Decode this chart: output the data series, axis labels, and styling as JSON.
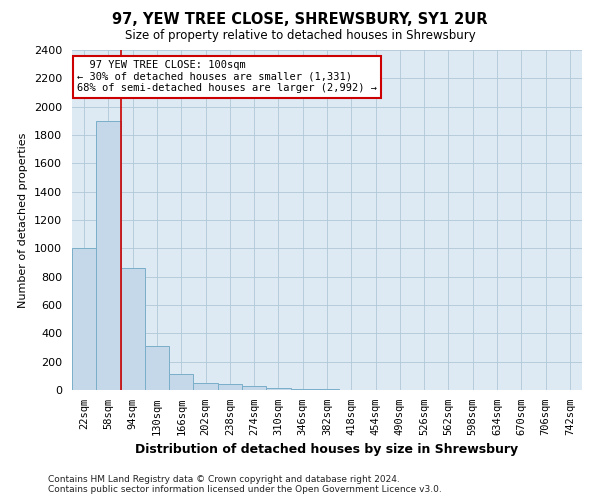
{
  "title": "97, YEW TREE CLOSE, SHREWSBURY, SY1 2UR",
  "subtitle": "Size of property relative to detached houses in Shrewsbury",
  "xlabel": "Distribution of detached houses by size in Shrewsbury",
  "ylabel": "Number of detached properties",
  "footnote1": "Contains HM Land Registry data © Crown copyright and database right 2024.",
  "footnote2": "Contains public sector information licensed under the Open Government Licence v3.0.",
  "bar_labels": [
    "22sqm",
    "58sqm",
    "94sqm",
    "130sqm",
    "166sqm",
    "202sqm",
    "238sqm",
    "274sqm",
    "310sqm",
    "346sqm",
    "382sqm",
    "418sqm",
    "454sqm",
    "490sqm",
    "526sqm",
    "562sqm",
    "598sqm",
    "634sqm",
    "670sqm",
    "706sqm",
    "742sqm"
  ],
  "bar_values": [
    1000,
    1900,
    860,
    310,
    110,
    50,
    40,
    25,
    15,
    10,
    5,
    3,
    2,
    1,
    1,
    0,
    0,
    0,
    0,
    0,
    0
  ],
  "bar_color": "#c5d8ea",
  "bar_edge_color": "#7aaec8",
  "red_line_index": 2,
  "ylim": [
    0,
    2400
  ],
  "yticks": [
    0,
    200,
    400,
    600,
    800,
    1000,
    1200,
    1400,
    1600,
    1800,
    2000,
    2200,
    2400
  ],
  "annotation_title": "97 YEW TREE CLOSE: 100sqm",
  "annotation_line1": "← 30% of detached houses are smaller (1,331)",
  "annotation_line2": "68% of semi-detached houses are larger (2,992) →",
  "annotation_box_facecolor": "#ffffff",
  "annotation_box_edgecolor": "#cc0000",
  "red_line_color": "#cc0000",
  "grid_color": "#b0c8d8",
  "fig_bg_color": "#ffffff",
  "plot_bg_color": "#ddeaf4"
}
